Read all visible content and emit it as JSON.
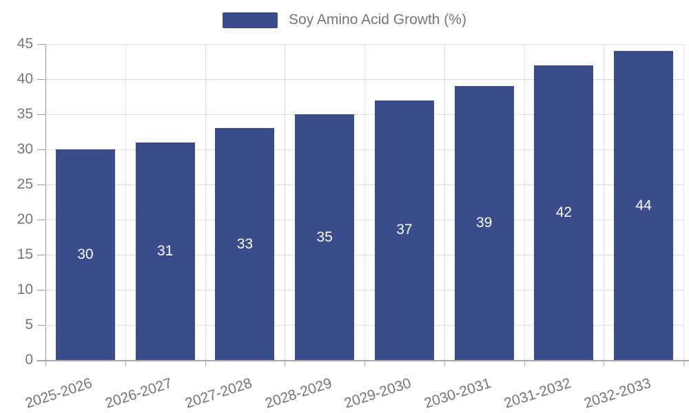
{
  "legend": {
    "label": "Soy Amino Acid Growth (%)"
  },
  "chart_data": {
    "type": "bar",
    "title": "",
    "series_name": "Soy Amino Acid Growth (%)",
    "categories": [
      "2025-2026",
      "2026-2027",
      "2027-2028",
      "2028-2029",
      "2029-2030",
      "2030-2031",
      "2031-2032",
      "2032-2033"
    ],
    "values": [
      30,
      31,
      33,
      35,
      37,
      39,
      42,
      44
    ],
    "xlabel": "",
    "ylabel": "",
    "ylim": [
      0,
      45
    ],
    "ytick_step": 5,
    "ytick_labels": [
      "0",
      "5",
      "10",
      "15",
      "20",
      "25",
      "30",
      "35",
      "40",
      "45"
    ],
    "grid": true,
    "legend_position": "top-center",
    "x_label_rotation_deg": -18,
    "value_label_position": "inside-center",
    "colors": {
      "bar": "#3a4c8c",
      "value_label": "#ffffff",
      "grid": "#e0e0e0",
      "axis": "#999999",
      "tick_text": "#757575",
      "legend_text": "#757575",
      "background": "#ffffff"
    }
  }
}
